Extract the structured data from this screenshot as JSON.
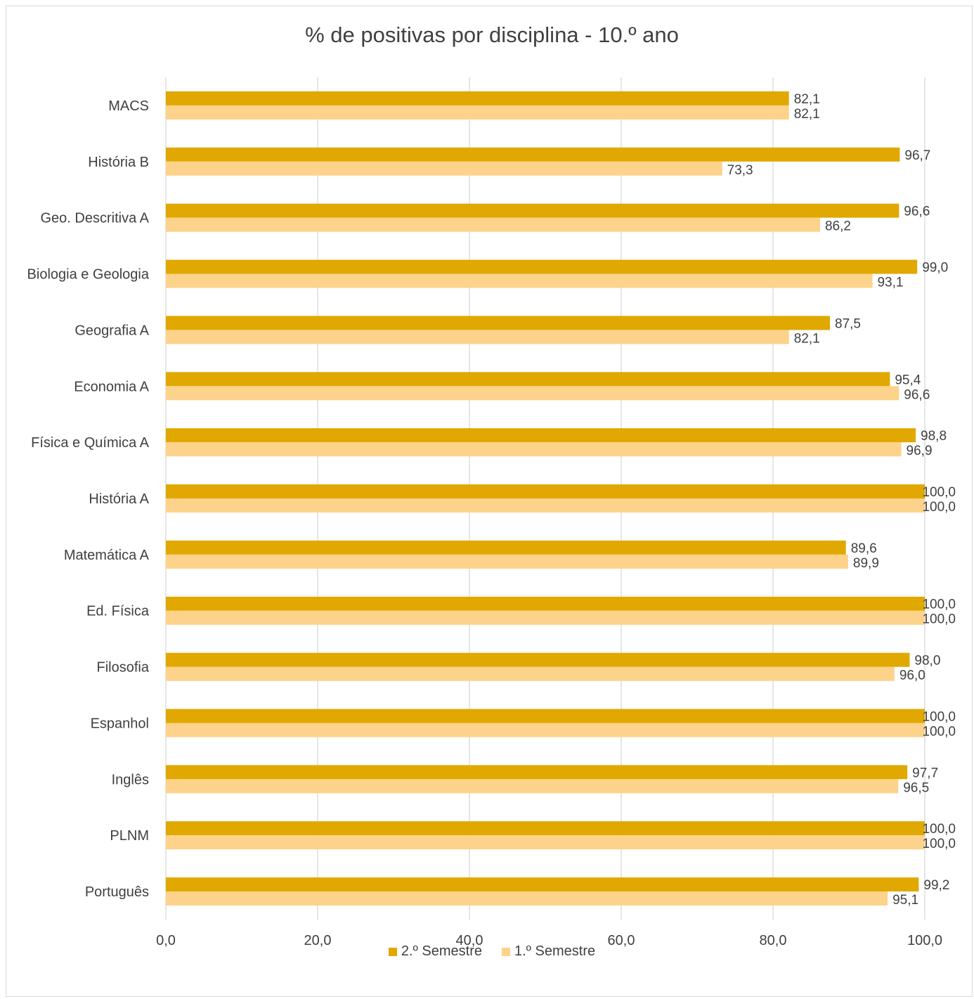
{
  "chart_data": {
    "type": "bar",
    "orientation": "horizontal",
    "title": "% de positivas por disciplina - 10.º ano",
    "categories": [
      "Português",
      "PLNM",
      "Inglês",
      "Espanhol",
      "Filosofia",
      "Ed. Física",
      "Matemática A",
      "História A",
      "Física e Química A",
      "Economia A",
      "Geografia A",
      "Biologia e Geologia",
      "Geo. Descritiva A",
      "História B",
      "MACS"
    ],
    "series": [
      {
        "name": "2.º Semestre",
        "color": "#e0a800",
        "values": [
          99.2,
          100.0,
          97.7,
          100.0,
          98.0,
          100.0,
          89.6,
          100.0,
          98.8,
          95.4,
          87.5,
          99.0,
          96.6,
          96.7,
          82.1
        ],
        "labels": [
          "99,2",
          "100,0",
          "97,7",
          "100,0",
          "98,0",
          "100,0",
          "89,6",
          "100,0",
          "98,8",
          "95,4",
          "87,5",
          "99,0",
          "96,6",
          "96,7",
          "82,1"
        ]
      },
      {
        "name": "1.º Semestre",
        "color": "#fdd28a",
        "values": [
          95.1,
          100.0,
          96.5,
          100.0,
          96.0,
          100.0,
          89.9,
          100.0,
          96.9,
          96.6,
          82.1,
          93.1,
          86.2,
          73.3,
          82.1
        ],
        "labels": [
          "95,1",
          "100,0",
          "96,5",
          "100,0",
          "96,0",
          "100,0",
          "89,9",
          "100,0",
          "96,9",
          "96,6",
          "82,1",
          "93,1",
          "86,2",
          "73,3",
          "82,1"
        ]
      }
    ],
    "xlim": [
      0,
      100
    ],
    "xticks": [
      "0,0",
      "20,0",
      "40,0",
      "60,0",
      "80,0",
      "100,0"
    ],
    "grid": true,
    "legend_position": "bottom"
  }
}
